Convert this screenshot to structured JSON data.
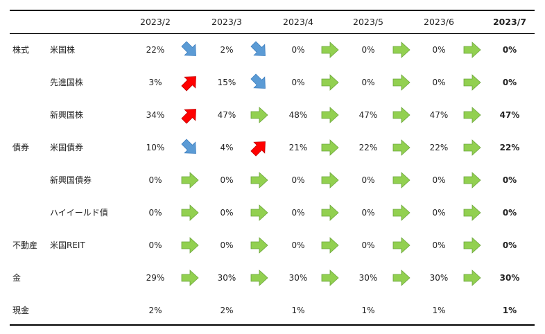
{
  "table": {
    "periods": [
      "2023/2",
      "2023/3",
      "2023/4",
      "2023/5",
      "2023/6",
      "2023/7"
    ],
    "rows": [
      {
        "category": "株式",
        "asset": "米国株",
        "values": [
          "22%",
          "2%",
          "0%",
          "0%",
          "0%",
          "0%"
        ],
        "trends": [
          "down",
          "down",
          "flat",
          "flat",
          "flat"
        ]
      },
      {
        "category": "",
        "asset": "先進国株",
        "values": [
          "3%",
          "15%",
          "0%",
          "0%",
          "0%",
          "0%"
        ],
        "trends": [
          "up",
          "down",
          "flat",
          "flat",
          "flat"
        ]
      },
      {
        "category": "",
        "asset": "新興国株",
        "values": [
          "34%",
          "47%",
          "48%",
          "47%",
          "47%",
          "47%"
        ],
        "trends": [
          "up",
          "flat",
          "flat",
          "flat",
          "flat"
        ]
      },
      {
        "category": "債券",
        "asset": "米国債券",
        "values": [
          "10%",
          "4%",
          "21%",
          "22%",
          "22%",
          "22%"
        ],
        "trends": [
          "down",
          "up",
          "flat",
          "flat",
          "flat"
        ]
      },
      {
        "category": "",
        "asset": "新興国債券",
        "values": [
          "0%",
          "0%",
          "0%",
          "0%",
          "0%",
          "0%"
        ],
        "trends": [
          "flat",
          "flat",
          "flat",
          "flat",
          "flat"
        ]
      },
      {
        "category": "",
        "asset": "ハイイールド債",
        "values": [
          "0%",
          "0%",
          "0%",
          "0%",
          "0%",
          "0%"
        ],
        "trends": [
          "flat",
          "flat",
          "flat",
          "flat",
          "flat"
        ]
      },
      {
        "category": "不動産",
        "asset": "米国REIT",
        "values": [
          "0%",
          "0%",
          "0%",
          "0%",
          "0%",
          "0%"
        ],
        "trends": [
          "flat",
          "flat",
          "flat",
          "flat",
          "flat"
        ]
      },
      {
        "category": "金",
        "asset": "",
        "values": [
          "29%",
          "30%",
          "30%",
          "30%",
          "30%",
          "30%"
        ],
        "trends": [
          "flat",
          "flat",
          "flat",
          "flat",
          "flat"
        ]
      },
      {
        "category": "現金",
        "asset": "",
        "values": [
          "2%",
          "2%",
          "1%",
          "1%",
          "1%",
          "1%"
        ],
        "trends": [
          "none",
          "none",
          "none",
          "none",
          "none"
        ]
      }
    ]
  },
  "colors": {
    "up": "#ff0000",
    "down": "#5b9bd5",
    "flat": "#92d050"
  },
  "icons": {
    "up": "arrow-up-right-icon",
    "down": "arrow-down-right-icon",
    "flat": "arrow-right-icon"
  }
}
